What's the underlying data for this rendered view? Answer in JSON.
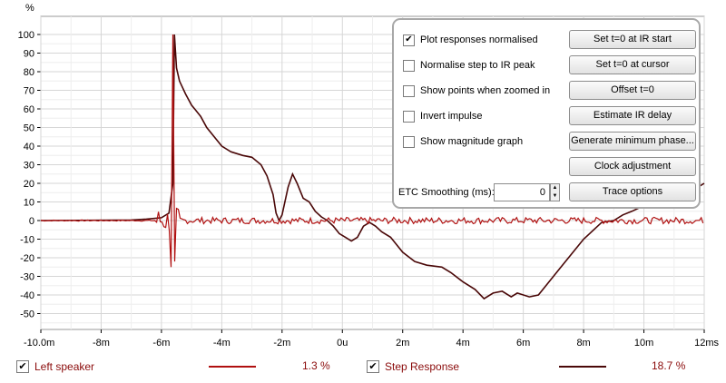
{
  "plot": {
    "unit_label": "%",
    "y_ticks": [
      "100",
      "90",
      "80",
      "70",
      "60",
      "50",
      "40",
      "30",
      "20",
      "10",
      "0",
      "-10",
      "-20",
      "-30",
      "-40",
      "-50"
    ],
    "x_ticks": [
      "-10.0m",
      "-8m",
      "-6m",
      "-4m",
      "-2m",
      "0u",
      "2m",
      "4m",
      "6m",
      "8m",
      "10m",
      "12ms"
    ],
    "colors": {
      "impulse": "#b01010",
      "step": "#4a0808",
      "grid": "#d6d6d6",
      "axis": "#000000"
    }
  },
  "options": {
    "checks": [
      {
        "label": "Plot responses normalised",
        "checked": true
      },
      {
        "label": "Normalise step to IR peak",
        "checked": false
      },
      {
        "label": "Show points when zoomed in",
        "checked": false
      },
      {
        "label": "Invert impulse",
        "checked": false
      },
      {
        "label": "Show magnitude graph",
        "checked": false
      }
    ],
    "buttons": [
      "Set t=0 at IR start",
      "Set t=0 at cursor",
      "Offset t=0",
      "Estimate IR delay",
      "Generate minimum phase...",
      "Clock adjustment",
      "Trace options"
    ],
    "smoothing_label": "ETC Smoothing (ms):",
    "smoothing_value": "0"
  },
  "legend": {
    "left": {
      "label": "Left speaker",
      "value": "1.3 %",
      "checked": true,
      "color": "#b01010"
    },
    "step": {
      "label": "Step Response",
      "value": "18.7 %",
      "checked": true,
      "color": "#4a0808"
    }
  }
}
